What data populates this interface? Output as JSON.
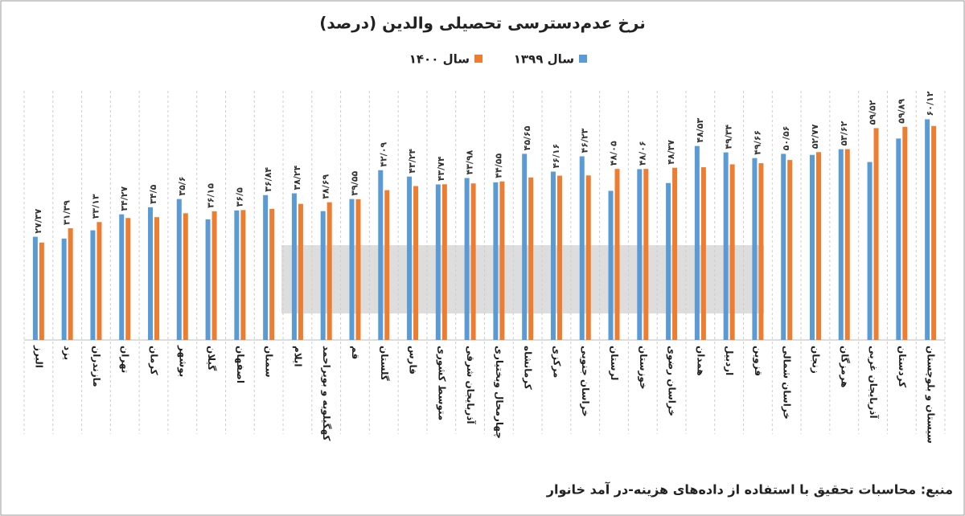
{
  "chart_data": {
    "type": "bar",
    "title": "نرخ عدم‌دسترسی تحصیلی والدین (درصد)",
    "source": "منبع: محاسبات تحقیق با استفاده از داده‌های هزینه-در آمد خانوار",
    "categories": [
      "البرز",
      "یزد",
      "مازندران",
      "تهران",
      "کرمان",
      "بوشهر",
      "گیلان",
      "اصفهان",
      "سمنان",
      "ایلام",
      "کهگیلویه و بویراحمد",
      "قم",
      "گلستان",
      "فارس",
      "متوسط کشوری",
      "آذربایجان شرقی",
      "چهارمحال وبختیاری",
      "کرمانشاه",
      "مرکزی",
      "خراسان جنوبی",
      "لرستان",
      "خوزستان",
      "خراسان رضوی",
      "همدان",
      "اردبیل",
      "قزوین",
      "خراسان شمالی",
      "زنجان",
      "هرمزگان",
      "آذربایجان غربی",
      "کردستان",
      "سیستان و بلوچستان"
    ],
    "series": [
      {
        "name": "سال ۱۳۹۹",
        "color": "#5b9bd5",
        "values": [
          29.0,
          28.5,
          30.8,
          35.3,
          37.3,
          39.6,
          33.9,
          36.4,
          40.7,
          41.2,
          36.2,
          39.6,
          47.7,
          45.9,
          43.7,
          45.5,
          44.3,
          52.3,
          47.3,
          51.6,
          41.9,
          48.0,
          44.1,
          54.5,
          52.7,
          51.1,
          52.3,
          52.0,
          53.6,
          50.0,
          56.6,
          62.0
        ]
      },
      {
        "name": "سال ۱۴۰۰",
        "color": "#ed7d31",
        "values": [
          27.37,
          31.39,
          33.13,
          34.27,
          34.5,
          35.6,
          36.15,
          36.5,
          36.84,
          38.24,
          38.69,
          39.55,
          42.09,
          43.24,
          43.74,
          43.98,
          44.55,
          45.65,
          46.16,
          46.23,
          48.05,
          48.06,
          48.37,
          48.53,
          49.34,
          49.66,
          50.56,
          52.77,
          53.62,
          59.52,
          59.89,
          60.12
        ],
        "value_labels": [
          "۲۷/۳۷",
          "۳۱/۳۹",
          "۳۳/۱۳",
          "۳۴/۲۷",
          "۳۴/۵",
          "۳۵/۶",
          "۳۶/۱۵",
          "۳۶/۵",
          "۳۶/۸۴",
          "۳۸/۲۴",
          "۳۸/۶۹",
          "۳۹/۵۵",
          "۴۲/۰۹",
          "۴۳/۲۴",
          "۴۳/۷۴",
          "۴۳/۹۸",
          "۴۴/۵۵",
          "۴۵/۶۵",
          "۴۶/۱۶",
          "۴۶/۲۳",
          "۴۸/۰۵",
          "۴۸/۰۶",
          "۴۸/۳۷",
          "۴۸/۵۳",
          "۴۹/۳۴",
          "۴۹/۶۶",
          "۵۰/۵۶",
          "۵۲/۷۷",
          "۵۳/۶۲",
          "۵۹/۵۲",
          "۵۹/۸۹",
          "۶۰/۱۲"
        ]
      }
    ],
    "ylim": [
      0,
      70
    ],
    "legend": "top"
  }
}
